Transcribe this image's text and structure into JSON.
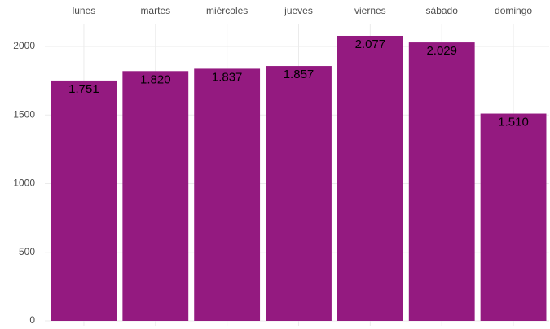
{
  "chart_data": {
    "type": "bar",
    "categories": [
      "lunes",
      "martes",
      "miércoles",
      "jueves",
      "viernes",
      "sábado",
      "domingo"
    ],
    "values": [
      1751,
      1820,
      1837,
      1857,
      2077,
      2029,
      1510
    ],
    "value_labels": [
      "1.751",
      "1.820",
      "1.837",
      "1.857",
      "2.077",
      "2.029",
      "1.510"
    ],
    "color": "#941a80",
    "ylim": [
      0,
      2160
    ],
    "yticks": [
      0,
      500,
      1000,
      1500,
      2000
    ],
    "grid": true,
    "x_axis_position": "top"
  }
}
